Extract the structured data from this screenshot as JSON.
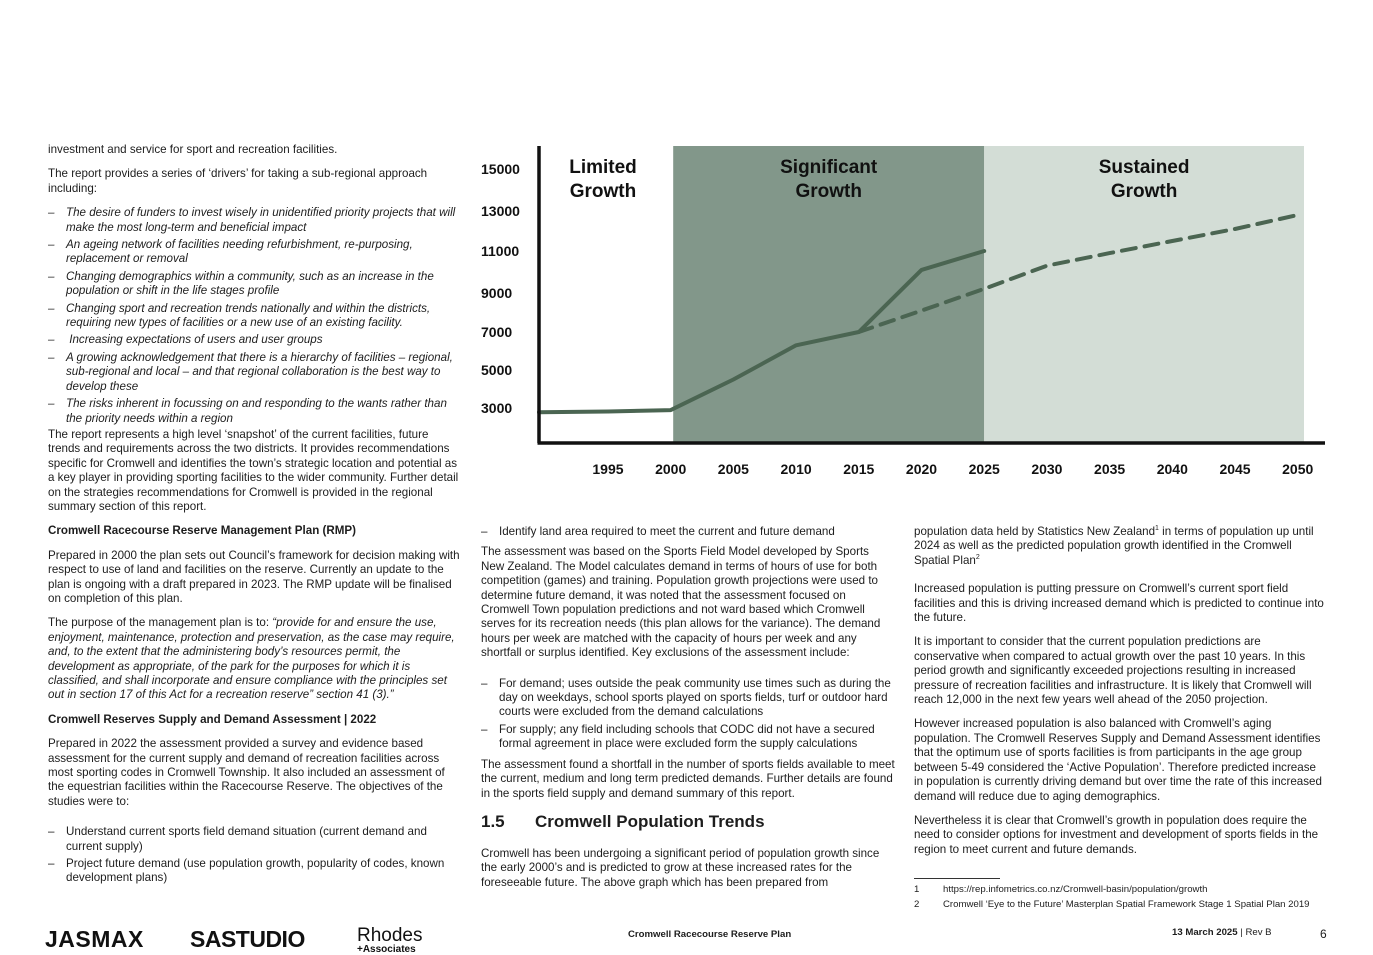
{
  "left_column": {
    "intro_continuation": "investment and service for sport and recreation facilities.",
    "drivers_intro": "The report provides a series of ‘drivers’ for taking a sub-regional approach including:",
    "drivers": [
      "The desire of funders to invest wisely in unidentified priority projects that will make the most long-term and beneficial impact",
      "An ageing network of facilities needing refurbishment, re-purposing, replacement or removal",
      "Changing demographics within a community, such as an increase in the population or shift in the life stages profile",
      "Changing sport and recreation trends nationally and within the districts, requiring new types of facilities or a new use of an existing facility.",
      " Increasing expectations of users and user groups",
      "A growing acknowledgement that there is a hierarchy of facilities – regional, sub-regional and local – and that regional collaboration is the best way to develop these",
      "The risks inherent in focussing on and responding to the wants rather than the priority needs within a region"
    ],
    "snapshot_para": "The report represents a high level ‘snapshot’ of the current facilities, future trends and requirements across the two districts. It provides recommendations specific for Cromwell and identifies the town’s strategic location and potential as a key player in providing sporting facilities to the wider community. Further detail on the strategies recommendations for Cromwell is provided in the regional summary section of this report.",
    "rmp_heading": "Cromwell Racecourse Reserve Management Plan (RMP)",
    "rmp_para": "Prepared in 2000 the plan sets out Council’s framework for decision making with respect to use of land and facilities on the reserve. Currently an update to the plan is ongoing with a draft prepared in 2023. The RMP update will be finalised on completion of this plan.",
    "purpose_lead": "The purpose of the management plan is to: ",
    "purpose_quote": "“provide for and ensure the use, enjoyment, maintenance, protection and preservation, as the case may require, and, to the extent that the administering body’s resources permit, the development as appropriate, of the park for the purposes for which it is classified, and shall incorporate and ensure compliance with the principles set out in section 17 of this Act for a recreation reserve” section 41 (3).”",
    "supply_heading": "Cromwell Reserves Supply and Demand Assessment | 2022",
    "supply_para": "Prepared in 2022 the assessment provided a survey and evidence based assessment for the current supply and demand of recreation facilities across most sporting codes in Cromwell Township. It also included an assessment of the equestrian facilities within the Racecourse Reserve. The objectives of the studies were to:",
    "objectives": [
      "Understand current sports field demand situation (current demand and current supply)",
      "Project future demand (use population growth, popularity of codes, known development plans)"
    ]
  },
  "middle_column": {
    "objective_cont": "Identify land area required to meet the current and future demand",
    "model_para": "The assessment was based on the Sports Field Model developed by Sports New Zealand. The Model calculates demand in terms of hours of use for both competition (games) and training. Population growth projections were used to determine future demand, it was noted that the assessment focused on Cromwell Town population predictions and not ward based which Cromwell serves for its recreation needs (this plan allows for the variance). The demand hours per week are matched with the capacity of hours per week and any shortfall or surplus identified. Key exclusions of the assessment include:",
    "exclusions": [
      "For demand; uses outside the peak community use times such as during the day on weekdays, school sports played on sports fields, turf or outdoor hard courts were excluded from the demand calculations",
      "For supply; any field including schools that CODC did not have a secured formal agreement in place were excluded form the supply calculations"
    ],
    "shortfall_para": "The assessment found a shortfall in the number of sports fields available to meet the current, medium and long term predicted demands.  Further details are found in the sports field supply and demand summary of this report.",
    "section_number": "1.5",
    "section_title": "Cromwell Population Trends",
    "growth_para": "Cromwell has been undergoing a significant period of population growth since the early 2000’s and is predicted to grow at these increased rates for the foreseeable future. The above graph which has been prepared from"
  },
  "right_column": {
    "p1_a": "population data held by Statistics New Zealand",
    "p1_sup1": "1",
    "p1_b": " in terms of population up until 2024 as well as the predicted population growth identified in the Cromwell Spatial Plan",
    "p1_sup2": "2",
    "p2": "Increased population is putting pressure on Cromwell’s current sport field facilities and this is driving increased demand which is predicted to continue into the future.",
    "p3": "It is important to consider that the current population predictions are conservative when compared to actual growth over the past 10 years. In this period growth and significantly exceeded projections resulting in increased pressure of recreation facilities and infrastructure. It is likely that Cromwell will reach 12,000 in the next few years well ahead of the 2050 projection.",
    "p4": "However increased population is also balanced with Cromwell’s aging population. The Cromwell Reserves Supply and Demand Assessment identifies that the optimum use of sports facilities is from participants in the age group between 5-49 considered the ‘Active Population’. Therefore predicted increase in population is currently driving demand but over time the rate of this increased demand will reduce due to aging demographics.",
    "p5": "Nevertheless it is clear that Cromwell’s growth in population does require the need to consider options for investment and development of sports fields in the region to meet current and future demands."
  },
  "footnotes": [
    {
      "num": "1",
      "text": "https://rep.infometrics.co.nz/Cromwell-basin/population/growth"
    },
    {
      "num": "2",
      "text": "Cromwell ‘Eye to the Future’ Masterplan Spatial Framework Stage 1 Spatial Plan 2019"
    }
  ],
  "footer": {
    "logo_1": "JASMAX",
    "logo_2": "SASTUDIO",
    "logo_3_main": "Rhodes",
    "logo_3_sub": "+Associates",
    "doc_title": "Cromwell Racecourse Reserve Plan",
    "date": "13 March 2025",
    "separator": " | ",
    "revision": "Rev B",
    "page_number": "6"
  },
  "chart_data": {
    "type": "line",
    "x_ticks": [
      "1995",
      "2000",
      "2005",
      "2010",
      "2015",
      "2020",
      "2025",
      "2030",
      "2035",
      "2040",
      "2045",
      "2050"
    ],
    "y_ticks": [
      "15000",
      "13000",
      "11000",
      "9000",
      "7000",
      "5000",
      "3000"
    ],
    "xlim": [
      1989.5,
      2050.5
    ],
    "phases": [
      {
        "label_line1": "Limited",
        "label_line2": "Growth",
        "from": 1989.5,
        "to": 2000.2,
        "color": "#ffffff"
      },
      {
        "label_line1": "Significant",
        "label_line2": "Growth",
        "from": 2000.2,
        "to": 2025,
        "color": "#82978a"
      },
      {
        "label_line1": "Sustained",
        "label_line2": "Growth",
        "from": 2025,
        "to": 2050.5,
        "color": "#d3ddd6"
      }
    ],
    "series": [
      {
        "style": "solid",
        "color": "#4b6552",
        "points": [
          [
            1989.5,
            2700
          ],
          [
            1995,
            2750
          ],
          [
            2000,
            2850
          ],
          [
            2005,
            4500
          ],
          [
            2010,
            6300
          ],
          [
            2015,
            7000
          ],
          [
            2020,
            10100
          ],
          [
            2025,
            11000
          ]
        ]
      },
      {
        "style": "dashed",
        "color": "#4b6552",
        "points": [
          [
            2015,
            7000
          ],
          [
            2020,
            8100
          ],
          [
            2025,
            9200
          ],
          [
            2030,
            10300
          ],
          [
            2035,
            10900
          ],
          [
            2040,
            11500
          ],
          [
            2045,
            12100
          ],
          [
            2050,
            12800
          ]
        ]
      }
    ]
  }
}
